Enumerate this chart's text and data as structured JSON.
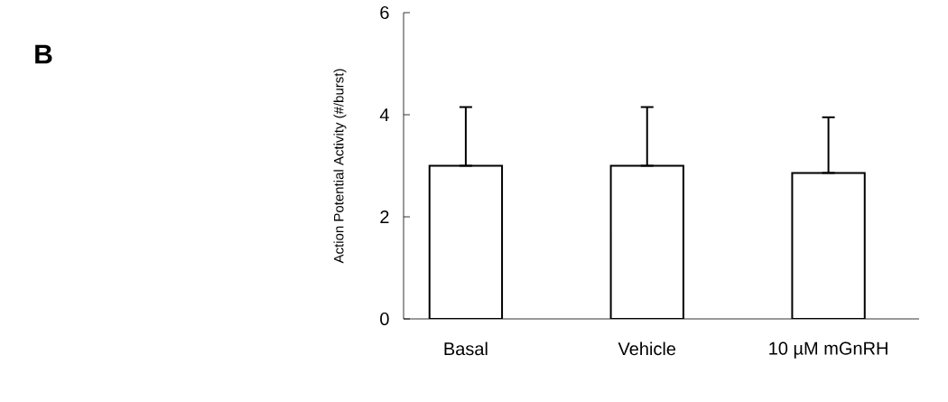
{
  "chart_data": {
    "type": "bar",
    "ylabel": "Action Potential Activity (#/burst)",
    "categories": [
      "Basal",
      "Vehicle",
      "10 µM mGnRH"
    ],
    "values": [
      3.0,
      3.0,
      2.86
    ],
    "errors": [
      [
        3.0,
        4.15
      ],
      [
        3.0,
        4.15
      ],
      [
        2.86,
        3.95
      ]
    ],
    "color": "#ffffff",
    "ylim": [
      0,
      6
    ],
    "yticks": [
      0,
      2,
      4,
      6
    ],
    "grid": false,
    "annotations": [
      "B"
    ]
  }
}
